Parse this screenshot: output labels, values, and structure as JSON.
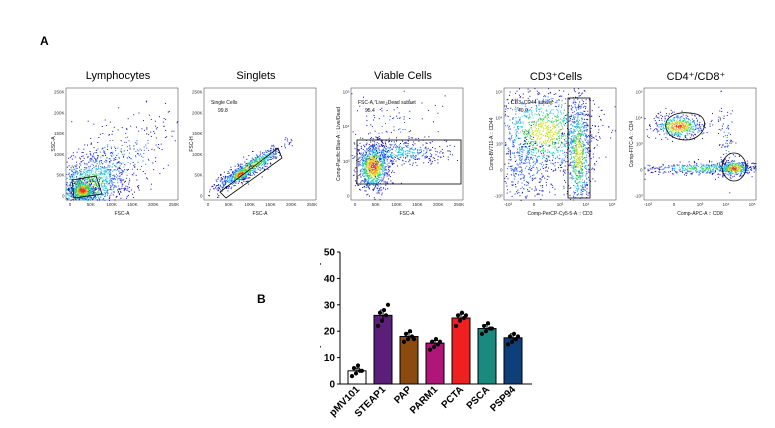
{
  "panel_a_label": "A",
  "panel_b_label": "B",
  "flow_panels": [
    {
      "title": "Lymphocytes",
      "y_label": "SSC-A",
      "x_label": "FSC-A",
      "gate_label": "",
      "gate_value": "",
      "x_ticks": [
        "0",
        "50K",
        "100K",
        "150K",
        "200K",
        "250K"
      ],
      "y_ticks": [
        "250K",
        "200K",
        "150K",
        "100K",
        "50K",
        "0"
      ]
    },
    {
      "title": "Singlets",
      "y_label": "FSC-H",
      "x_label": "FSC-A",
      "gate_label": "Single Cells",
      "gate_value": "99.8",
      "x_ticks": [
        "0",
        "50K",
        "100K",
        "150K",
        "200K",
        "250K"
      ],
      "y_ticks": [
        "250K",
        "200K",
        "150K",
        "100K",
        "50K",
        "0"
      ]
    },
    {
      "title": "Viable Cells",
      "y_label": "Comp-Pacific Blue-A :: Live/Dead",
      "x_label": "FSC-A",
      "gate_label": "FSC-A, Live_Dead subset",
      "gate_value": "95.4",
      "x_ticks": [
        "0",
        "50K",
        "100K",
        "150K",
        "200K",
        "250K"
      ],
      "y_ticks": [
        "10⁵",
        "10⁴",
        "10³",
        "0"
      ]
    },
    {
      "title": "CD3⁺Cells",
      "y_label": "Comp-BV711-A :: CD44",
      "x_label": "Comp-PerCP-Cy5-5-A :: CD3",
      "gate_label": "CD3, CD44 subset",
      "gate_value": "40.0",
      "x_ticks": [
        "-10³",
        "0",
        "10³",
        "10⁴",
        "10⁵"
      ],
      "y_ticks": [
        "10⁵",
        "10⁴",
        "10³",
        "0",
        "-10³"
      ]
    },
    {
      "title": "CD4⁺/CD8⁺",
      "y_label": "Comp-FITC-A :: CD4",
      "x_label": "Comp-APC-A :: CD8",
      "gate_label": "",
      "gate_value": "",
      "x_ticks": [
        "-10³",
        "0",
        "10³",
        "10⁴",
        "10⁵"
      ],
      "y_ticks": [
        "10⁵",
        "10⁴",
        "10³",
        "0",
        "-10³"
      ]
    }
  ],
  "chart_data": {
    "type": "bar",
    "categories": [
      "pMV101",
      "STEAP1",
      "PAP",
      "PARM1",
      "PCTA",
      "PSCA",
      "PSP94"
    ],
    "values": [
      5,
      26,
      18,
      15.5,
      25,
      21,
      17.5
    ],
    "errors": [
      1,
      2,
      1.5,
      1,
      1.5,
      1.5,
      1.5
    ],
    "points": [
      [
        3,
        4,
        5,
        6,
        7,
        5
      ],
      [
        22,
        24,
        26,
        27,
        28,
        30
      ],
      [
        16,
        17,
        18,
        19,
        20,
        17
      ],
      [
        13,
        14,
        15,
        16,
        17,
        16
      ],
      [
        22,
        24,
        25,
        26,
        27,
        26
      ],
      [
        19,
        20,
        21,
        22,
        23,
        21
      ],
      [
        15,
        16,
        17,
        18,
        19,
        18
      ]
    ],
    "colors": [
      "#ffffff",
      "#5b1f7a",
      "#8b4a0e",
      "#b0157a",
      "#f02020",
      "#1a8a80",
      "#0e3f7a"
    ],
    "ylabel": "CD8⁺ (% CD3⁺/CD4⁻ cells)",
    "ylim": [
      0,
      50
    ],
    "yticks": [
      0,
      10,
      20,
      30,
      40,
      50
    ]
  }
}
